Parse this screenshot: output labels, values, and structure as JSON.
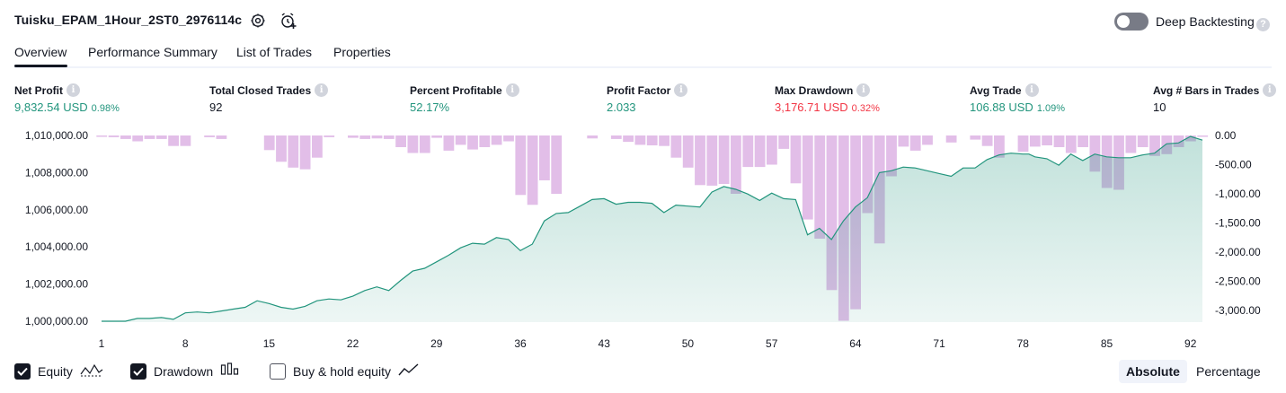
{
  "header": {
    "strategy_name": "Tuisku_EPAM_1Hour_2ST0_2976114c",
    "settings_icon": "gear-icon",
    "alert_icon": "alarm-clock-plus-icon",
    "deep_backtesting_label": "Deep Backtesting",
    "deep_backtesting_enabled": false,
    "help_icon_text": "?"
  },
  "tabs": [
    {
      "label": "Overview",
      "active": true
    },
    {
      "label": "Performance Summary",
      "active": false
    },
    {
      "label": "List of Trades",
      "active": false
    },
    {
      "label": "Properties",
      "active": false
    }
  ],
  "metrics": [
    {
      "label": "Net Profit",
      "value": "9,832.54 USD",
      "sub": "0.98%",
      "color": "#22957d"
    },
    {
      "label": "Total Closed Trades",
      "value": "92",
      "sub": "",
      "color": "#131722"
    },
    {
      "label": "Percent Profitable",
      "value": "52.17%",
      "sub": "",
      "color": "#22957d"
    },
    {
      "label": "Profit Factor",
      "value": "2.033",
      "sub": "",
      "color": "#22957d"
    },
    {
      "label": "Max Drawdown",
      "value": "3,176.71 USD",
      "sub": "0.32%",
      "color": "#f23645"
    },
    {
      "label": "Avg Trade",
      "value": "106.88 USD",
      "sub": "1.09%",
      "color": "#22957d"
    },
    {
      "label": "Avg # Bars in Trades",
      "value": "10",
      "sub": "",
      "color": "#131722"
    }
  ],
  "info_icon_text": "i",
  "chart_data": {
    "type": "line",
    "x_ticks": [
      "1",
      "8",
      "15",
      "22",
      "29",
      "36",
      "43",
      "50",
      "57",
      "64",
      "71",
      "78",
      "85",
      "92"
    ],
    "y_left_ticks": [
      "1,010,000.00",
      "1,008,000.00",
      "1,006,000.00",
      "1,004,000.00",
      "1,002,000.00",
      "1,000,000.00"
    ],
    "y_right_ticks": [
      "0.00",
      "-500.00",
      "-1,000.00",
      "-1,500.00",
      "-2,000.00",
      "-2,500.00",
      "-3,000.00"
    ],
    "ylim_left": [
      999900,
      1010100
    ],
    "ylim_right": [
      -3176.71,
      0
    ],
    "x_range": [
      1,
      93
    ],
    "series": [
      {
        "name": "Equity",
        "color": "#22957d",
        "x": [
          1,
          2,
          3,
          4,
          5,
          6,
          7,
          8,
          9,
          10,
          11,
          12,
          13,
          14,
          15,
          16,
          17,
          18,
          19,
          20,
          21,
          22,
          23,
          24,
          25,
          26,
          27,
          28,
          29,
          30,
          31,
          32,
          33,
          34,
          35,
          36,
          37,
          38,
          39,
          40,
          41,
          42,
          43,
          44,
          45,
          46,
          47,
          48,
          49,
          50,
          51,
          52,
          53,
          54,
          55,
          56,
          57,
          58,
          59,
          60,
          61,
          62,
          63,
          64,
          65,
          66,
          67,
          68,
          69,
          70,
          71,
          72,
          73,
          74,
          75,
          76,
          77,
          78,
          78.5,
          79,
          80,
          81,
          82,
          83,
          84,
          85,
          86,
          87,
          88,
          89,
          90,
          91,
          92,
          93
        ],
        "y": [
          1000000,
          1000000,
          1000000,
          1000150,
          1000150,
          1000200,
          1000100,
          1000450,
          1000500,
          1000450,
          1000550,
          1000650,
          1000750,
          1001100,
          1000950,
          1000750,
          1000650,
          1000800,
          1001100,
          1001200,
          1001150,
          1001350,
          1001650,
          1001850,
          1001650,
          1002200,
          1002700,
          1002850,
          1003200,
          1003550,
          1003950,
          1004200,
          1004150,
          1004500,
          1004400,
          1003800,
          1004150,
          1005400,
          1005800,
          1005850,
          1006200,
          1006550,
          1006600,
          1006300,
          1006400,
          1006400,
          1006350,
          1005850,
          1006250,
          1006200,
          1006150,
          1006950,
          1007250,
          1007100,
          1006850,
          1006500,
          1006900,
          1006600,
          1006550,
          1004650,
          1005000,
          1004400,
          1005400,
          1006150,
          1006650,
          1008000,
          1008100,
          1008300,
          1008250,
          1008100,
          1007950,
          1007800,
          1008250,
          1008250,
          1008700,
          1008950,
          1009050,
          1009000,
          1009000,
          1008850,
          1008750,
          1008400,
          1009000,
          1008650,
          1009000,
          1008850,
          1008800,
          1008800,
          1008950,
          1009050,
          1009550,
          1009600,
          1009950,
          1009750
        ]
      },
      {
        "name": "Drawdown",
        "color": "#ce93d8",
        "values": [
          -10,
          -30,
          -60,
          -100,
          -60,
          -60,
          -180,
          -180,
          0,
          -30,
          -60,
          0,
          0,
          0,
          -250,
          -450,
          -550,
          -580,
          -380,
          -30,
          0,
          -40,
          -60,
          -50,
          -60,
          -200,
          -300,
          -300,
          -40,
          -260,
          -160,
          -240,
          -200,
          -160,
          -100,
          -1020,
          -1190,
          -770,
          -1000,
          0,
          0,
          -50,
          0,
          -60,
          -110,
          -160,
          -170,
          -180,
          -380,
          -550,
          -850,
          -860,
          -830,
          -1000,
          -540,
          -540,
          -500,
          -230,
          -820,
          -1440,
          -1770,
          -2650,
          -3176.71,
          -2980,
          -1330,
          -1850,
          -700,
          -190,
          -260,
          -160,
          0,
          -120,
          0,
          -70,
          -180,
          -380,
          0,
          -280,
          -190,
          -170,
          -200,
          -300,
          -200,
          -620,
          -900,
          -930,
          -300,
          -200,
          -350,
          -320,
          -200,
          -100,
          -20
        ],
        "drawdown_y_min": -3176.71
      }
    ],
    "legend": [
      {
        "name": "Equity",
        "checked": true,
        "icon": "equity-line-icon"
      },
      {
        "name": "Drawdown",
        "checked": true,
        "icon": "drawdown-bars-icon"
      },
      {
        "name": "Buy & hold equity",
        "checked": false,
        "icon": "buy-hold-line-icon"
      }
    ]
  },
  "modes": [
    {
      "label": "Absolute",
      "active": true
    },
    {
      "label": "Percentage",
      "active": false
    }
  ]
}
